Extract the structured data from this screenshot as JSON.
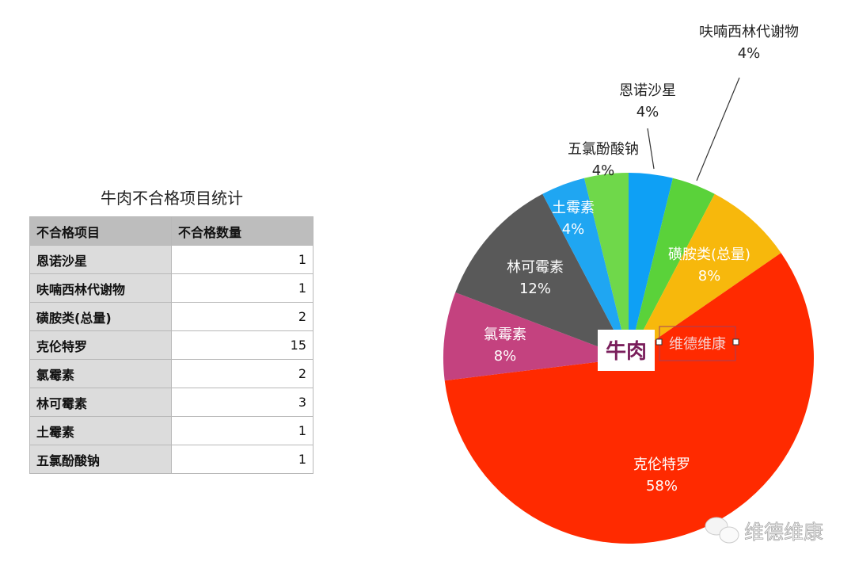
{
  "table": {
    "title": "牛肉不合格项目统计",
    "headers": [
      "不合格项目",
      "不合格数量"
    ],
    "rows": [
      [
        "恩诺沙星",
        "1"
      ],
      [
        "呋喃西林代谢物",
        "1"
      ],
      [
        "磺胺类(总量)",
        "2"
      ],
      [
        "克伦特罗",
        "15"
      ],
      [
        "氯霉素",
        "2"
      ],
      [
        "林可霉素",
        "3"
      ],
      [
        "土霉素",
        "1"
      ],
      [
        "五氯酚酸钠",
        "1"
      ]
    ]
  },
  "chart_data": {
    "type": "pie",
    "title": "牛肉",
    "start": "top, clockwise",
    "categories": [
      "恩诺沙星",
      "呋喃西林代谢物",
      "磺胺类(总量)",
      "克伦特罗",
      "氯霉素",
      "林可霉素",
      "土霉素",
      "五氯酚酸钠"
    ],
    "values": [
      1,
      1,
      2,
      15,
      2,
      3,
      1,
      1
    ],
    "percent_labels": [
      "4%",
      "4%",
      "8%",
      "58%",
      "8%",
      "12%",
      "4%",
      "4%"
    ],
    "colors": [
      "#0ea0f5",
      "#5ad23a",
      "#f7b80c",
      "#ff2a00",
      "#c4427f",
      "#595959",
      "#1fa6f2",
      "#6fd84a"
    ],
    "label_colors": [
      "#222",
      "#222",
      "#fff",
      "#fff",
      "#fff",
      "#fff",
      "#fff",
      "#222"
    ],
    "annotation": "维德维康"
  },
  "watermark": "维德维康"
}
